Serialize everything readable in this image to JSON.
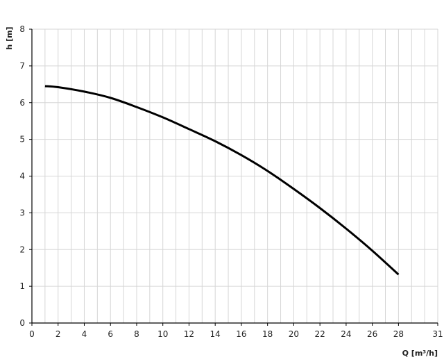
{
  "chart_data": {
    "type": "line",
    "title": "",
    "xlabel": "Q [m³/h]",
    "ylabel": "h [m]",
    "xlim": [
      0,
      31
    ],
    "ylim": [
      0,
      8
    ],
    "x_ticks": [
      0,
      2,
      4,
      6,
      8,
      10,
      12,
      14,
      16,
      18,
      20,
      22,
      24,
      26,
      28,
      31
    ],
    "y_ticks": [
      0,
      1,
      2,
      3,
      4,
      5,
      6,
      7,
      8
    ],
    "grid": true,
    "series": [
      {
        "color": "#000000",
        "x": [
          1,
          2,
          4,
          6,
          8,
          10,
          12,
          14,
          16,
          18,
          20,
          22,
          24,
          26,
          28
        ],
        "y": [
          6.45,
          6.42,
          6.3,
          6.13,
          5.88,
          5.6,
          5.28,
          4.95,
          4.57,
          4.14,
          3.65,
          3.13,
          2.57,
          1.97,
          1.32
        ]
      }
    ]
  }
}
